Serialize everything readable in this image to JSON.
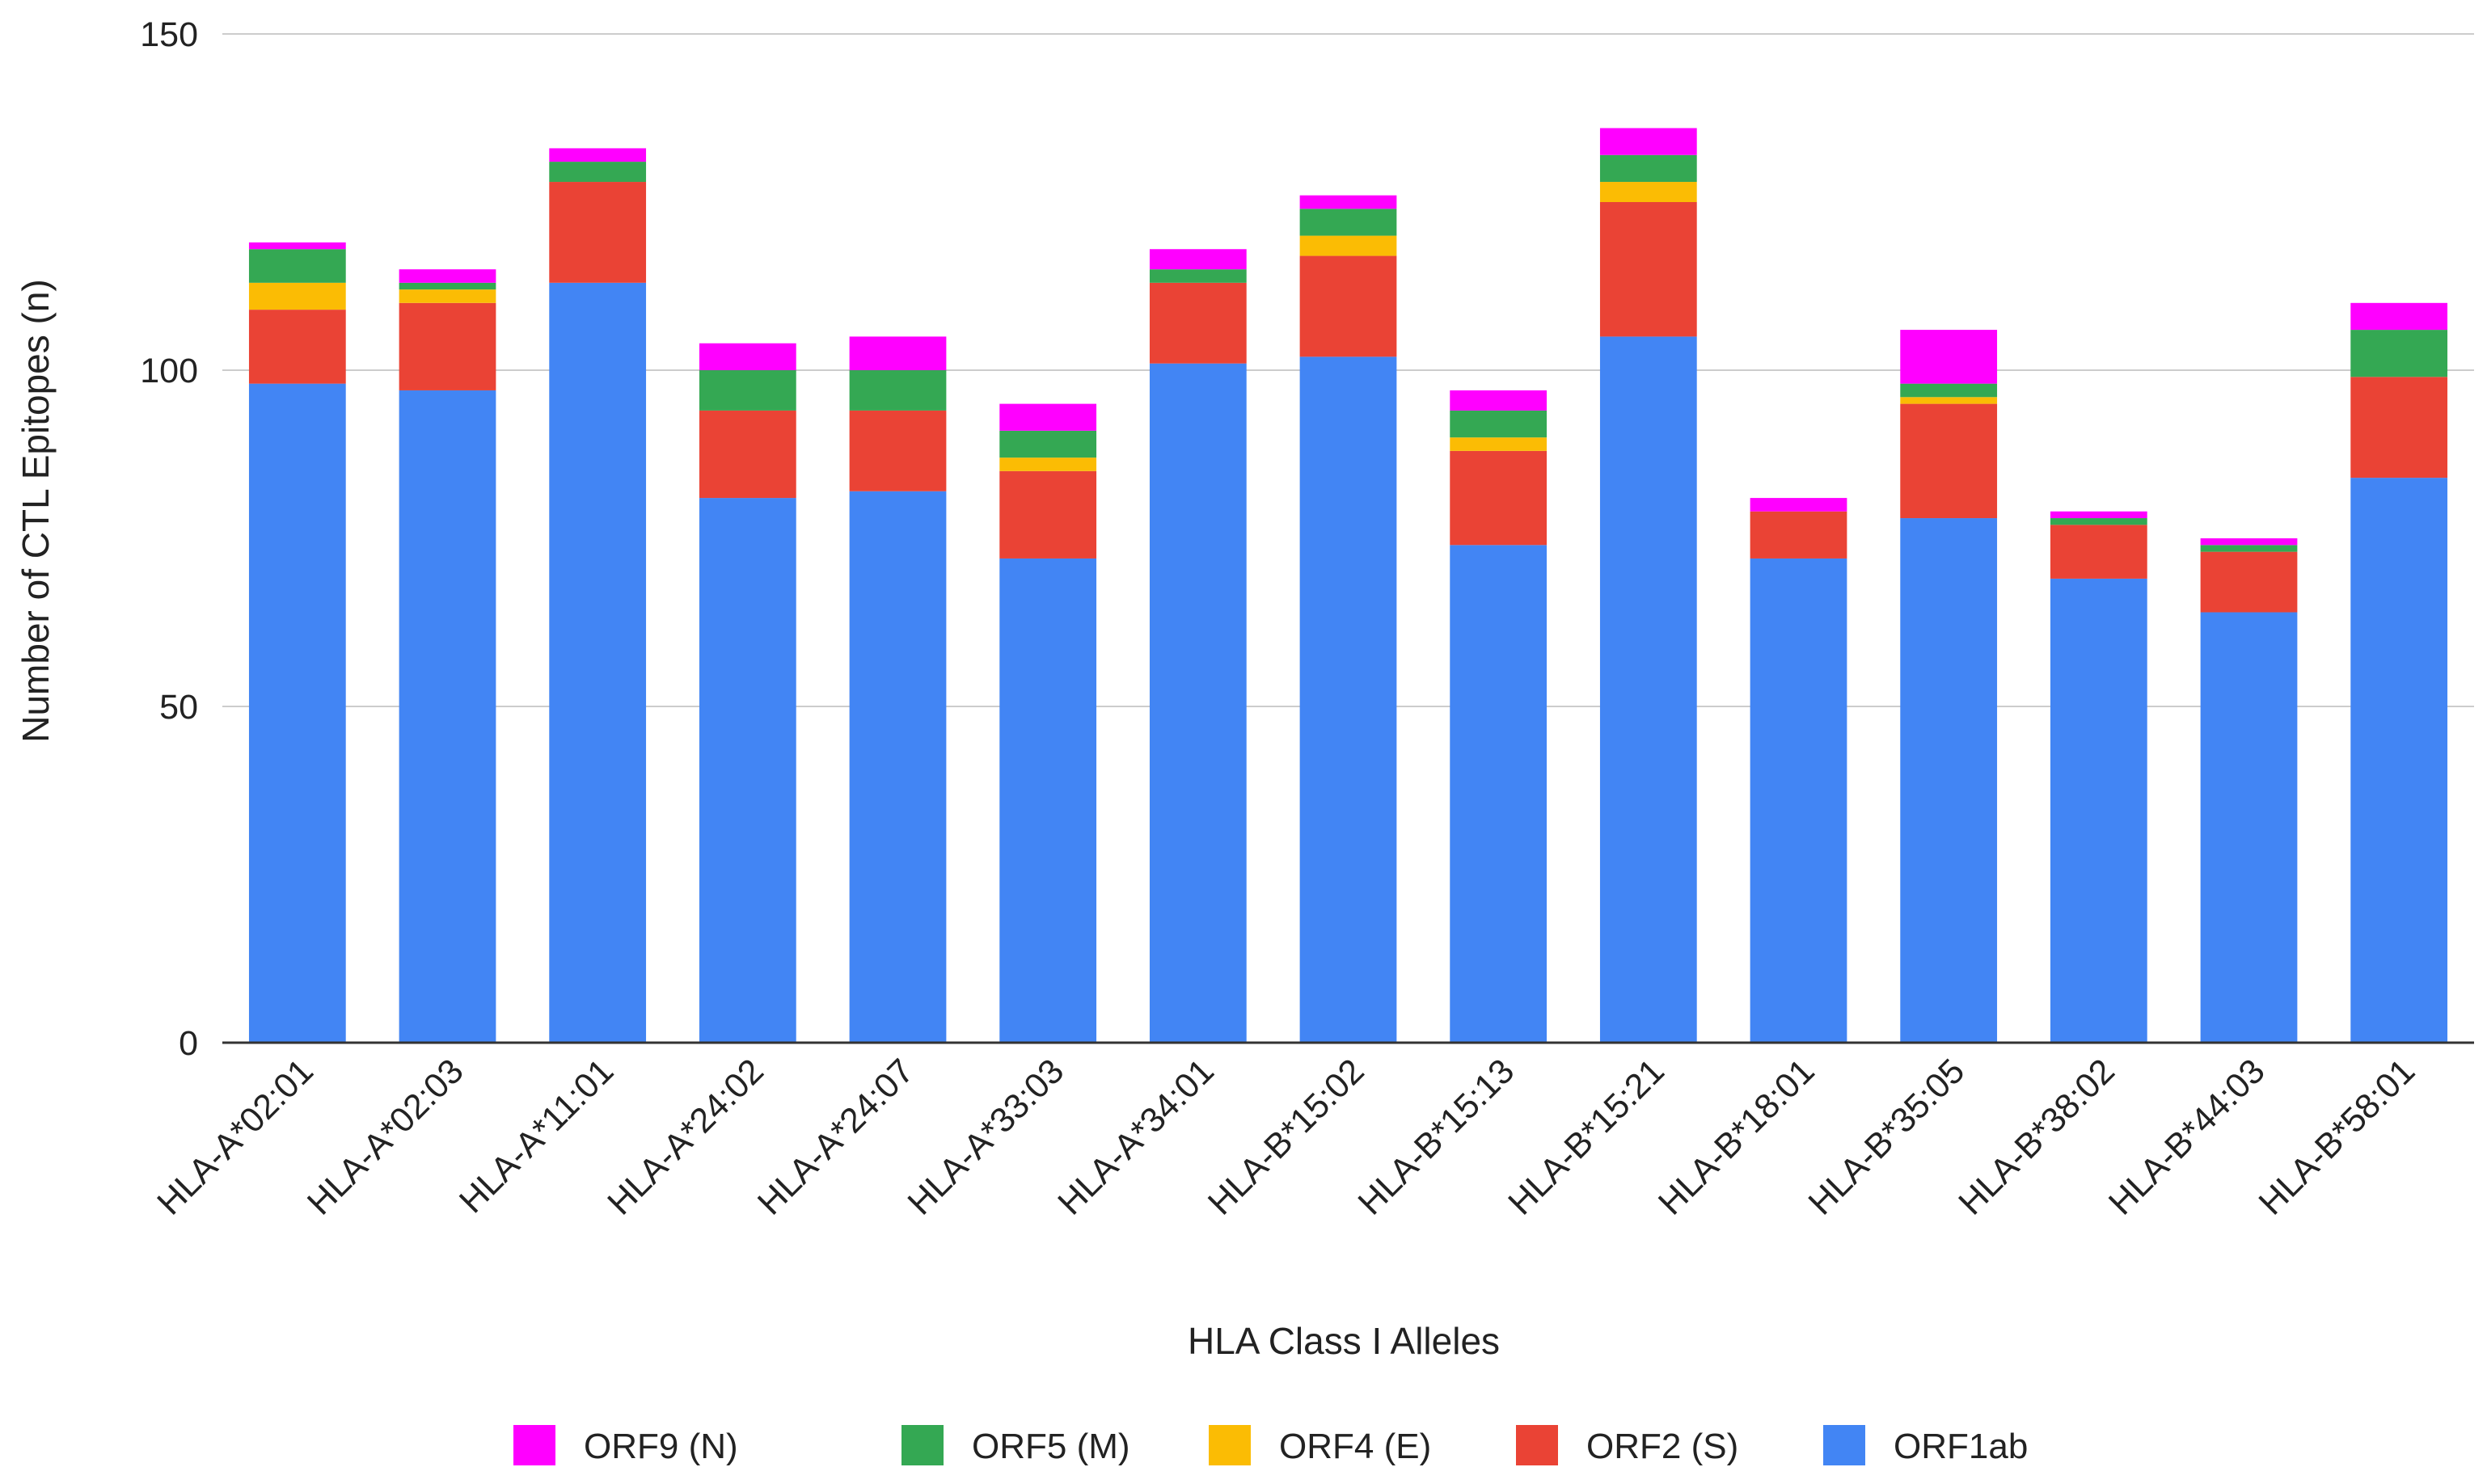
{
  "chart_data": {
    "type": "bar",
    "stacked": true,
    "title": "",
    "xlabel": "HLA Class I Alleles",
    "ylabel": "Number of CTL Epitopes (n)",
    "ylim": [
      0,
      150
    ],
    "yticks": [
      "0",
      "50",
      "100",
      "150"
    ],
    "grid": true,
    "legend_position": "bottom",
    "categories": [
      "HLA-A*02:01",
      "HLA-A*02:03",
      "HLA-A*11:01",
      "HLA-A*24:02",
      "HLA-A*24:07",
      "HLA-A*33:03",
      "HLA-A*34:01",
      "HLA-B*15:02",
      "HLA-B*15:13",
      "HLA-B*15:21",
      "HLA-B*18:01",
      "HLA-B*35:05",
      "HLA-B*38:02",
      "HLA-B*44:03",
      "HLA-B*58:01"
    ],
    "series": [
      {
        "name": "ORF1ab",
        "color": "#4285f4",
        "values": [
          98,
          97,
          113,
          81,
          82,
          72,
          101,
          102,
          74,
          105,
          72,
          78,
          69,
          64,
          84
        ]
      },
      {
        "name": "ORF2 (S)",
        "color": "#ea4335",
        "values": [
          11,
          13,
          15,
          13,
          12,
          13,
          12,
          15,
          14,
          20,
          7,
          17,
          8,
          9,
          15
        ]
      },
      {
        "name": "ORF4 (E)",
        "color": "#fbbc04",
        "values": [
          4,
          2,
          0,
          0,
          0,
          2,
          0,
          3,
          2,
          3,
          0,
          1,
          0,
          0,
          0
        ]
      },
      {
        "name": "ORF5 (M)",
        "color": "#34a853",
        "values": [
          5,
          1,
          3,
          6,
          6,
          4,
          2,
          4,
          4,
          4,
          0,
          2,
          1,
          1,
          7
        ]
      },
      {
        "name": "ORF9 (N)",
        "color": "#ff00ff",
        "values": [
          1,
          2,
          2,
          4,
          5,
          4,
          3,
          2,
          3,
          4,
          2,
          8,
          1,
          1,
          4
        ]
      }
    ],
    "legend_order": [
      "ORF9 (N)",
      "ORF5 (M)",
      "ORF4 (E)",
      "ORF2 (S)",
      "ORF1ab"
    ]
  }
}
